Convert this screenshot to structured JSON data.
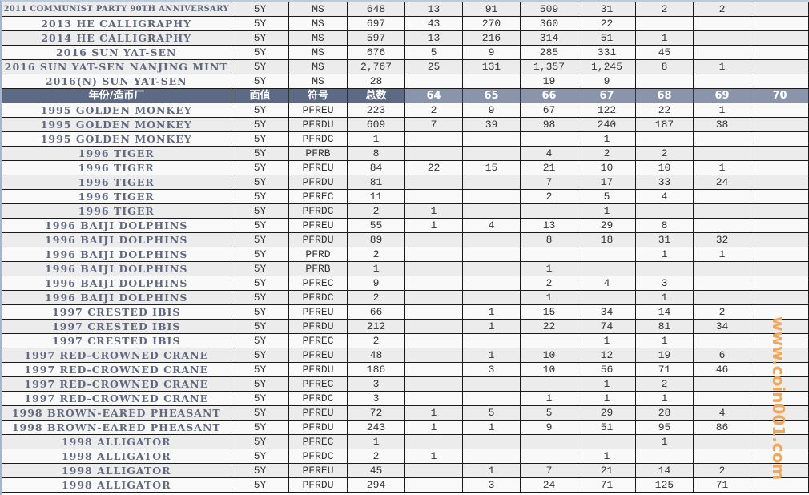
{
  "header": {
    "name": "年份/造币厂",
    "face": "面值",
    "code": "符号",
    "total": "总数",
    "grades": [
      "64",
      "65",
      "66",
      "67",
      "68",
      "69",
      "70"
    ]
  },
  "top_rows": [
    {
      "name": "2011 COMMUNIST PARTY 90TH ANNIVERSARY",
      "face": "5Y",
      "code": "MS",
      "total": "648",
      "g": [
        "13",
        "91",
        "509",
        "31",
        "2",
        "2",
        ""
      ]
    },
    {
      "name": "2013 HE CALLIGRAPHY",
      "face": "5Y",
      "code": "MS",
      "total": "697",
      "g": [
        "43",
        "270",
        "360",
        "22",
        "",
        "",
        ""
      ]
    },
    {
      "name": "2014 HE CALLIGRAPHY",
      "face": "5Y",
      "code": "MS",
      "total": "597",
      "g": [
        "13",
        "216",
        "314",
        "51",
        "1",
        "",
        ""
      ]
    },
    {
      "name": "2016 SUN YAT-SEN",
      "face": "5Y",
      "code": "MS",
      "total": "676",
      "g": [
        "5",
        "9",
        "285",
        "331",
        "45",
        "",
        ""
      ]
    },
    {
      "name": "2016 SUN YAT-SEN NANJING MINT",
      "face": "5Y",
      "code": "MS",
      "total": "2,767",
      "g": [
        "25",
        "131",
        "1,357",
        "1,245",
        "8",
        "1",
        ""
      ]
    },
    {
      "name": "2016(N) SUN YAT-SEN",
      "face": "5Y",
      "code": "MS",
      "total": "28",
      "g": [
        "",
        "",
        "19",
        "9",
        "",
        "",
        ""
      ]
    }
  ],
  "rows": [
    {
      "name": "1995 GOLDEN MONKEY",
      "face": "5Y",
      "code": "PFREU",
      "total": "223",
      "g": [
        "2",
        "9",
        "67",
        "122",
        "22",
        "1",
        ""
      ]
    },
    {
      "name": "1995 GOLDEN MONKEY",
      "face": "5Y",
      "code": "PFRDU",
      "total": "609",
      "g": [
        "7",
        "39",
        "98",
        "240",
        "187",
        "38",
        ""
      ]
    },
    {
      "name": "1995 GOLDEN MONKEY",
      "face": "5Y",
      "code": "PFRDC",
      "total": "1",
      "g": [
        "",
        "",
        "",
        "1",
        "",
        "",
        ""
      ]
    },
    {
      "name": "1996 TIGER",
      "face": "5Y",
      "code": "PFRB",
      "total": "8",
      "g": [
        "",
        "",
        "4",
        "2",
        "2",
        "",
        ""
      ]
    },
    {
      "name": "1996 TIGER",
      "face": "5Y",
      "code": "PFREU",
      "total": "84",
      "g": [
        "22",
        "15",
        "21",
        "10",
        "10",
        "1",
        ""
      ]
    },
    {
      "name": "1996 TIGER",
      "face": "5Y",
      "code": "PFRDU",
      "total": "81",
      "g": [
        "",
        "",
        "7",
        "17",
        "33",
        "24",
        ""
      ]
    },
    {
      "name": "1996 TIGER",
      "face": "5Y",
      "code": "PFREC",
      "total": "11",
      "g": [
        "",
        "",
        "2",
        "5",
        "4",
        "",
        ""
      ]
    },
    {
      "name": "1996 TIGER",
      "face": "5Y",
      "code": "PFRDC",
      "total": "2",
      "g": [
        "1",
        "",
        "",
        "1",
        "",
        "",
        ""
      ]
    },
    {
      "name": "1996 BAIJI DOLPHINS",
      "face": "5Y",
      "code": "PFREU",
      "total": "55",
      "g": [
        "1",
        "4",
        "13",
        "29",
        "8",
        "",
        ""
      ]
    },
    {
      "name": "1996 BAIJI DOLPHINS",
      "face": "5Y",
      "code": "PFRDU",
      "total": "89",
      "g": [
        "",
        "",
        "8",
        "18",
        "31",
        "32",
        ""
      ]
    },
    {
      "name": "1996 BAIJI DOLPHINS",
      "face": "5Y",
      "code": "PFRD",
      "total": "2",
      "g": [
        "",
        "",
        "",
        "",
        "1",
        "1",
        ""
      ]
    },
    {
      "name": "1996 BAIJI DOLPHINS",
      "face": "5Y",
      "code": "PFRB",
      "total": "1",
      "g": [
        "",
        "",
        "1",
        "",
        "",
        "",
        ""
      ]
    },
    {
      "name": "1996 BAIJI DOLPHINS",
      "face": "5Y",
      "code": "PFREC",
      "total": "9",
      "g": [
        "",
        "",
        "2",
        "4",
        "3",
        "",
        ""
      ]
    },
    {
      "name": "1996 BAIJI DOLPHINS",
      "face": "5Y",
      "code": "PFRDC",
      "total": "2",
      "g": [
        "",
        "",
        "1",
        "",
        "1",
        "",
        ""
      ]
    },
    {
      "name": "1997 CRESTED IBIS",
      "face": "5Y",
      "code": "PFREU",
      "total": "66",
      "g": [
        "",
        "1",
        "15",
        "34",
        "14",
        "2",
        ""
      ]
    },
    {
      "name": "1997 CRESTED IBIS",
      "face": "5Y",
      "code": "PFRDU",
      "total": "212",
      "g": [
        "",
        "1",
        "22",
        "74",
        "81",
        "34",
        ""
      ]
    },
    {
      "name": "1997 CRESTED IBIS",
      "face": "5Y",
      "code": "PFREC",
      "total": "2",
      "g": [
        "",
        "",
        "",
        "1",
        "1",
        "",
        ""
      ]
    },
    {
      "name": "1997 RED-CROWNED CRANE",
      "face": "5Y",
      "code": "PFREU",
      "total": "48",
      "g": [
        "",
        "1",
        "10",
        "12",
        "19",
        "6",
        ""
      ]
    },
    {
      "name": "1997 RED-CROWNED CRANE",
      "face": "5Y",
      "code": "PFRDU",
      "total": "186",
      "g": [
        "",
        "3",
        "10",
        "56",
        "71",
        "46",
        ""
      ]
    },
    {
      "name": "1997 RED-CROWNED CRANE",
      "face": "5Y",
      "code": "PFREC",
      "total": "3",
      "g": [
        "",
        "",
        "",
        "1",
        "2",
        "",
        ""
      ]
    },
    {
      "name": "1997 RED-CROWNED CRANE",
      "face": "5Y",
      "code": "PFRDC",
      "total": "3",
      "g": [
        "",
        "",
        "1",
        "1",
        "1",
        "",
        ""
      ]
    },
    {
      "name": "1998 BROWN-EARED PHEASANT",
      "face": "5Y",
      "code": "PFREU",
      "total": "72",
      "g": [
        "1",
        "5",
        "5",
        "29",
        "28",
        "4",
        ""
      ]
    },
    {
      "name": "1998 BROWN-EARED PHEASANT",
      "face": "5Y",
      "code": "PFRDU",
      "total": "243",
      "g": [
        "1",
        "1",
        "9",
        "51",
        "95",
        "86",
        ""
      ]
    },
    {
      "name": "1998 ALLIGATOR",
      "face": "5Y",
      "code": "PFREC",
      "total": "1",
      "g": [
        "",
        "",
        "",
        "",
        "1",
        "",
        ""
      ]
    },
    {
      "name": "1998 ALLIGATOR",
      "face": "5Y",
      "code": "PFRDC",
      "total": "2",
      "g": [
        "1",
        "",
        "",
        "1",
        "",
        "",
        ""
      ]
    },
    {
      "name": "1998 ALLIGATOR",
      "face": "5Y",
      "code": "PFREU",
      "total": "45",
      "g": [
        "",
        "1",
        "7",
        "21",
        "14",
        "2",
        ""
      ]
    },
    {
      "name": "1998 ALLIGATOR",
      "face": "5Y",
      "code": "PFRDU",
      "total": "294",
      "g": [
        "",
        "3",
        "24",
        "71",
        "125",
        "71",
        ""
      ]
    }
  ],
  "watermark": "www.coin001.com",
  "colors": {
    "header_bg": "#5d6a85",
    "grade_header_bg": "#8a95ab",
    "name_text": "#5f6880",
    "watermark": "#f2a65a"
  }
}
